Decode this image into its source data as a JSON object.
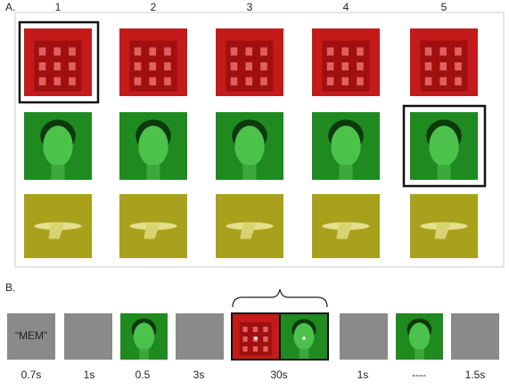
{
  "panel_a": {
    "label": "A.",
    "columns": [
      "1",
      "2",
      "3",
      "4",
      "5"
    ]
  },
  "panel_b": {
    "label": "B.",
    "cue": "“MEM”",
    "durations": [
      "0.7s",
      "1s",
      "0.5",
      "3s",
      "30s",
      "1s",
      "----",
      "1.5s"
    ]
  }
}
